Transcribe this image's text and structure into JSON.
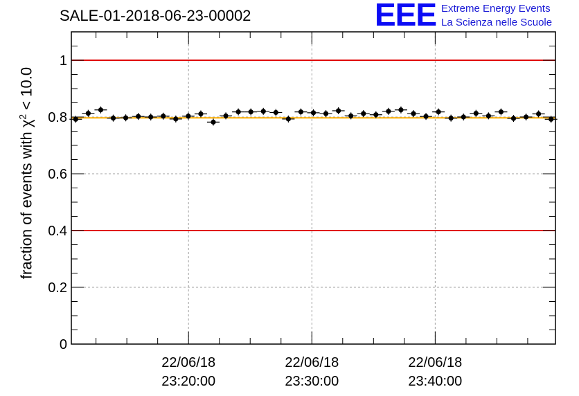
{
  "chart_data": {
    "type": "scatter",
    "title": "SALE-01-2018-06-23-00002",
    "ylabel_prefix": "fraction of events with ",
    "ylabel_symbol": "χ",
    "ylabel_power": "2",
    "ylabel_suffix": " < 10.0",
    "ylim": [
      0,
      1.1
    ],
    "yticks": [
      "0",
      "0.2",
      "0.4",
      "0.6",
      "0.8",
      "1"
    ],
    "ytick_values": [
      0,
      0.2,
      0.4,
      0.6,
      0.8,
      1.0
    ],
    "xlim": [
      "22/06/18 23:10:30",
      "22/06/18 23:49:45"
    ],
    "xticks": [
      {
        "date": "22/06/18",
        "time": "23:20:00",
        "t": 570
      },
      {
        "date": "22/06/18",
        "time": "23:30:00",
        "t": 1170
      },
      {
        "date": "22/06/18",
        "time": "23:40:00",
        "t": 1770
      }
    ],
    "x_range_t": [
      0,
      2355
    ],
    "reference_lines": [
      {
        "y": 1.0,
        "color": "#e00000"
      },
      {
        "y": 0.4,
        "color": "#e00000"
      },
      {
        "y": 0.797,
        "color": "#ffb000"
      }
    ],
    "grid": true,
    "series": [
      {
        "values": [
          0.792,
          0.813,
          0.825,
          0.796,
          0.797,
          0.802,
          0.8,
          0.803,
          0.793,
          0.803,
          0.811,
          0.782,
          0.804,
          0.818,
          0.818,
          0.82,
          0.816,
          0.793,
          0.818,
          0.815,
          0.812,
          0.822,
          0.804,
          0.812,
          0.808,
          0.82,
          0.825,
          0.812,
          0.802,
          0.818,
          0.796,
          0.8,
          0.813,
          0.804,
          0.818,
          0.795,
          0.8,
          0.811,
          0.792
        ]
      }
    ]
  },
  "logo": {
    "mark": "EEE",
    "line1": "Extreme Energy Events",
    "line2": "La Scienza nelle Scuole"
  }
}
